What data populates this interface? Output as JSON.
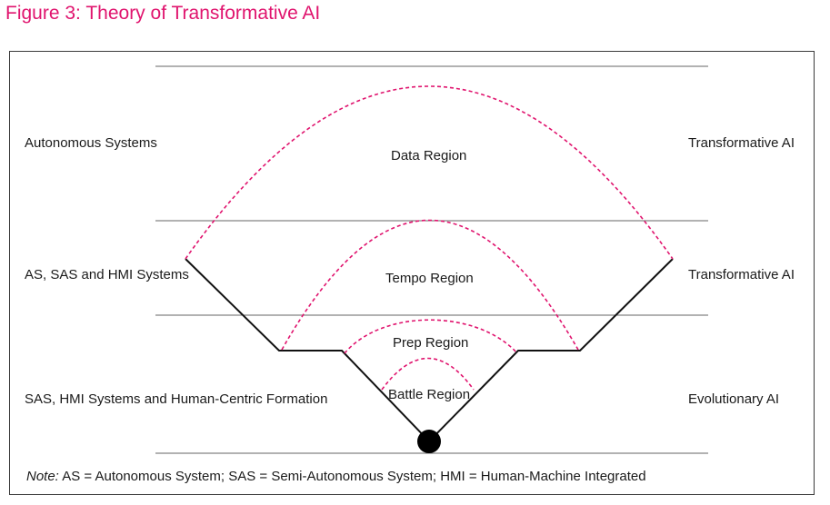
{
  "figure": {
    "title": "Figure 3: Theory of Transformative AI",
    "accent_color": "#e0146e"
  },
  "left_labels": {
    "top": "Autonomous Systems",
    "middle": "AS, SAS and HMI Systems",
    "bottom": "SAS, HMI Systems and Human-Centric Formation"
  },
  "right_labels": {
    "top": "Transformative AI",
    "middle": "Transformative AI",
    "bottom": "Evolutionary AI"
  },
  "regions": {
    "data": "Data Region",
    "tempo": "Tempo Region",
    "prep": "Prep Region",
    "battle": "Battle Region"
  },
  "note": {
    "prefix": "Note:",
    "text": " AS = Autonomous System; SAS = Semi-Autonomous System; HMI = Human-Machine Integrated"
  }
}
